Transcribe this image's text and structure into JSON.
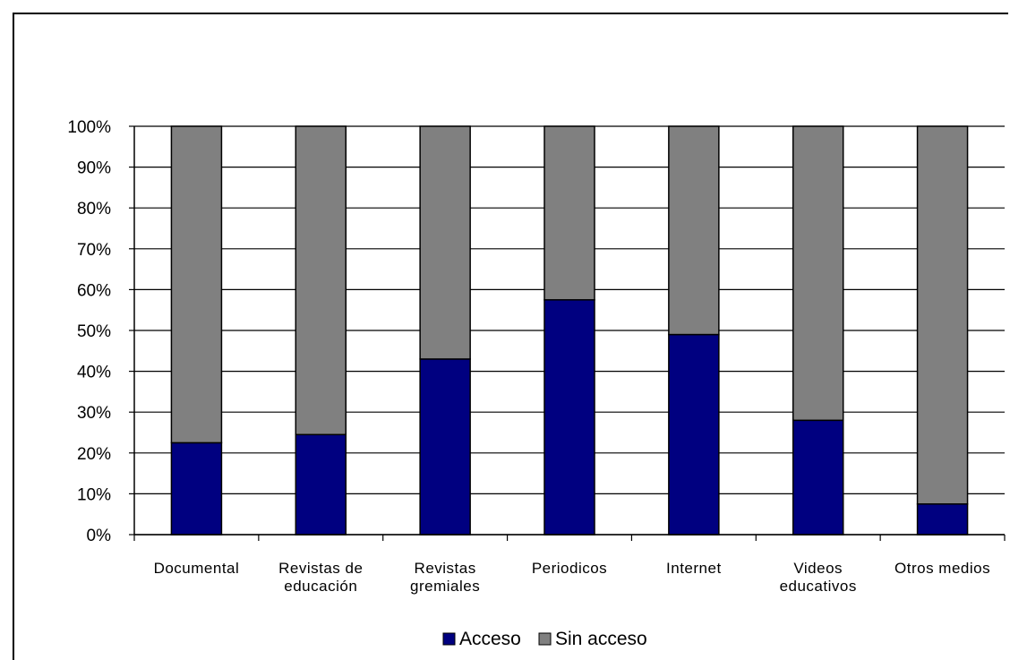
{
  "chart_data": {
    "type": "bar",
    "stacked": "percent",
    "categories": [
      [
        "Documental"
      ],
      [
        "Revistas de",
        "educación"
      ],
      [
        "Revistas",
        "gremiales"
      ],
      [
        "Periodicos"
      ],
      [
        "Internet"
      ],
      [
        "Videos",
        "educativos"
      ],
      [
        "Otros medios"
      ]
    ],
    "series": [
      {
        "name": "Acceso",
        "color": "#000080",
        "values": [
          22.5,
          24.5,
          43,
          57.5,
          49,
          28,
          7.5
        ]
      },
      {
        "name": "Sin acceso",
        "color": "#808080",
        "values": [
          77.5,
          75.5,
          57,
          42.5,
          51,
          72,
          92.5
        ]
      }
    ],
    "yticks": [
      "0%",
      "10%",
      "20%",
      "30%",
      "40%",
      "50%",
      "60%",
      "70%",
      "80%",
      "90%",
      "100%"
    ],
    "ylim": [
      0,
      100
    ],
    "grid": true,
    "legend": "bottom"
  }
}
